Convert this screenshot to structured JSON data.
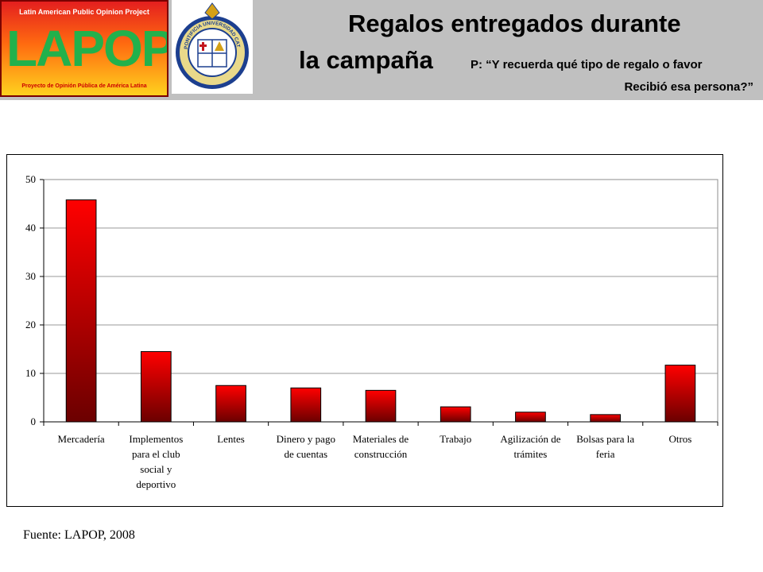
{
  "header": {
    "logo_top": "Latin American Public Opinion Project",
    "logo_word": "LAPOP",
    "logo_bottom": "Proyecto de Opinión Pública de América Latina",
    "seal_text": "PONTIFICIA UNIVERSIDAD CATOLICA DE CHILE",
    "title_line1": "Regalos entregados durante",
    "title_line2": "la campaña",
    "question_line1": "P: “Y recuerda qué tipo de regalo o favor",
    "question_line2": "Recibió esa persona?”"
  },
  "colors": {
    "header_bg": "#c0c0c0",
    "bar_top": "#ff0000",
    "bar_bottom": "#6b0000"
  },
  "chart_data": {
    "type": "bar",
    "categories": [
      [
        "Mercadería"
      ],
      [
        "Implementos",
        "para el club",
        "social y",
        "deportivo"
      ],
      [
        "Lentes"
      ],
      [
        "Dinero y pago",
        "de cuentas"
      ],
      [
        "Materiales de",
        "construcción"
      ],
      [
        "Trabajo"
      ],
      [
        "Agilización de",
        "trámites"
      ],
      [
        "Bolsas para la",
        "feria"
      ],
      [
        "Otros"
      ]
    ],
    "values": [
      45.8,
      14.5,
      7.5,
      7.0,
      6.5,
      3.1,
      2.0,
      1.5,
      11.7
    ],
    "ylim": [
      0,
      50
    ],
    "yticks": [
      0,
      10,
      20,
      30,
      40,
      50
    ],
    "grid": true
  },
  "footer": {
    "source": "Fuente: LAPOP, 2008"
  }
}
